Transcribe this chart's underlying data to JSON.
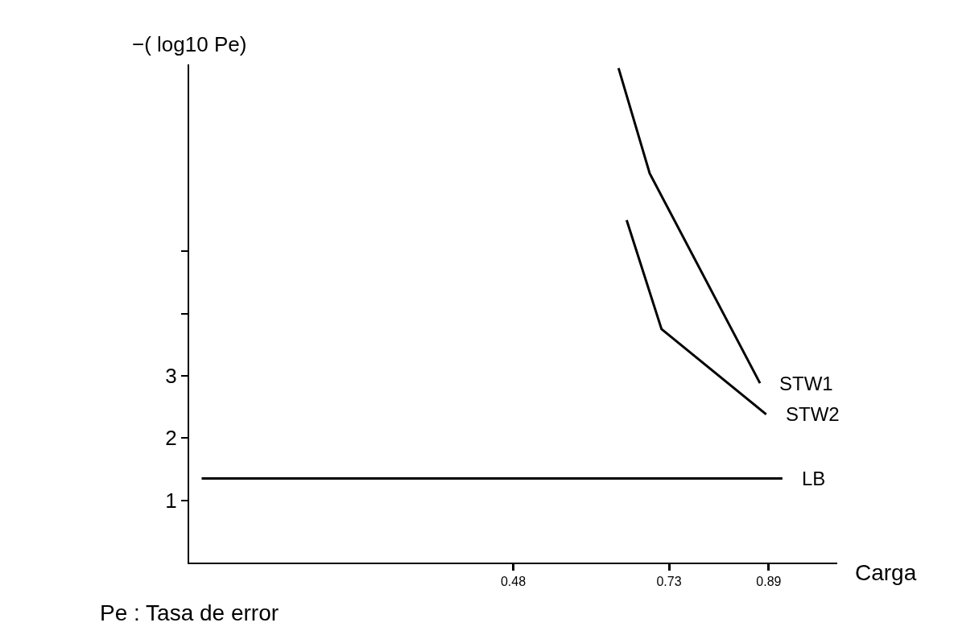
{
  "chart_data": {
    "type": "line",
    "ylabel": "−( log10 Pe)",
    "xlabel": "Carga",
    "annotations": [
      "Pe : Tasa de error"
    ],
    "series": [
      {
        "name": "STW1",
        "color": "#000000",
        "x": [
          0.649,
          0.699,
          0.876
        ],
        "values": [
          7.94,
          6.25,
          2.88
        ]
      },
      {
        "name": "STW2",
        "color": "#000000",
        "x": [
          0.662,
          0.718,
          0.886
        ],
        "values": [
          5.5,
          3.75,
          2.38
        ]
      },
      {
        "name": "LB",
        "color": "#000000",
        "x": [
          -0.02,
          0.912
        ],
        "values": [
          1.35,
          1.35
        ]
      }
    ],
    "xlim": [
      -0.04,
      1.0
    ],
    "xticks": [
      0.48,
      0.73,
      0.89
    ],
    "ylim": [
      0,
      8
    ],
    "yticks": [
      1,
      2,
      3,
      {
        "value": 4,
        "label": null
      },
      {
        "value": 5,
        "label": null
      }
    ],
    "legend": false,
    "marker": "none",
    "line_style": "solid"
  }
}
